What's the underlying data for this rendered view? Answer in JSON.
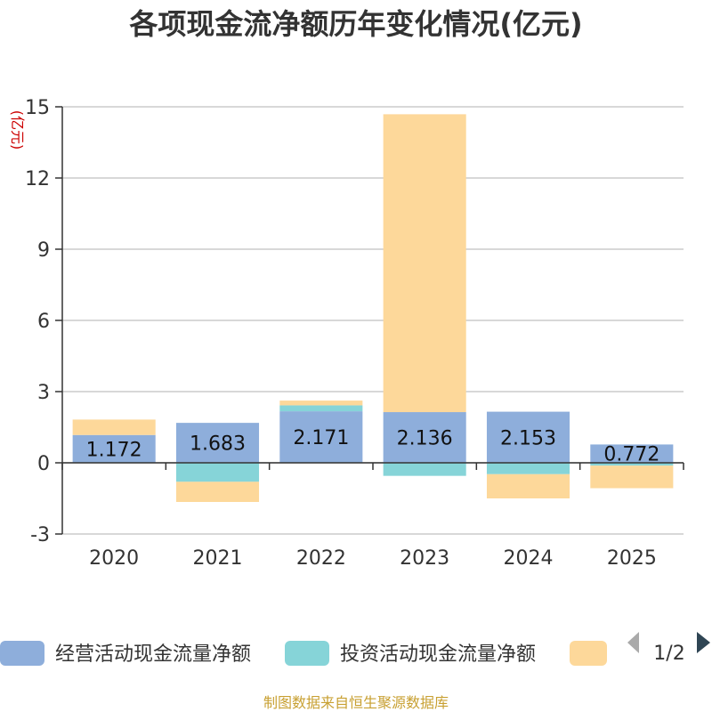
{
  "chart_data": {
    "type": "bar",
    "stacked": true,
    "title": "各项现金流净额历年变化情况(亿元)",
    "ylabel": "(亿元)",
    "xlabel": "",
    "categories": [
      "2020",
      "2021",
      "2022",
      "2023",
      "2024",
      "2025"
    ],
    "ylim": [
      -3,
      15
    ],
    "yticks": [
      -3,
      0,
      3,
      6,
      9,
      12,
      15
    ],
    "grid": true,
    "series": [
      {
        "name": "经营活动现金流量净额",
        "color": "#8eaedb",
        "values": [
          1.172,
          1.683,
          2.171,
          2.136,
          2.153,
          0.772
        ],
        "labels": [
          "1.172",
          "1.683",
          "2.171",
          "2.136",
          "2.153",
          "0.772"
        ]
      },
      {
        "name": "投资活动现金流量净额",
        "color": "#86d4d8",
        "values": [
          0.0,
          -0.8,
          0.25,
          -0.55,
          -0.48,
          -0.12
        ],
        "labels": null
      },
      {
        "name": "",
        "color": "#fdd89a",
        "values": [
          0.65,
          -0.85,
          0.2,
          12.55,
          -1.02,
          -0.95
        ],
        "labels": null
      }
    ],
    "legend_position": "bottom",
    "legend_page": "1/2",
    "source": "制图数据来自恒生聚源数据库"
  }
}
